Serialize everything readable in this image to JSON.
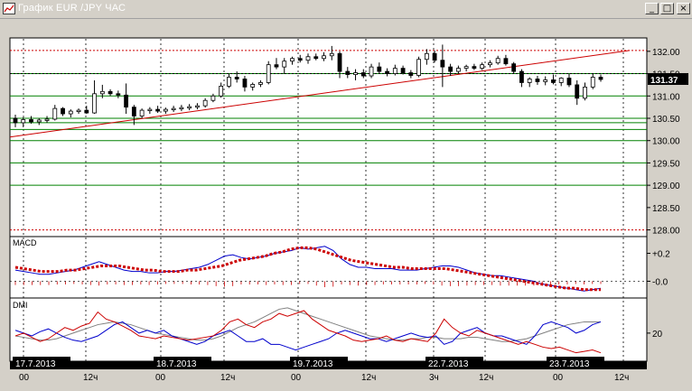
{
  "window": {
    "title": "График EUR /JPY ЧАС",
    "btn_min": "_",
    "btn_max": "□",
    "btn_close": "×"
  },
  "chart_data": {
    "type": "candlestick",
    "price": {
      "yaxis_ticks": [
        "132.00",
        "131.50",
        "131.00",
        "130.50",
        "130.00",
        "129.50",
        "129.00",
        "128.50",
        "128.00"
      ],
      "ylim": [
        127.85,
        132.3
      ],
      "current_price": "131.37",
      "bars": [
        [
          130.5,
          130.58,
          130.3,
          130.4
        ],
        [
          130.4,
          130.52,
          130.3,
          130.47
        ],
        [
          130.47,
          130.55,
          130.38,
          130.42
        ],
        [
          130.42,
          130.5,
          130.35,
          130.46
        ],
        [
          130.46,
          130.55,
          130.4,
          130.48
        ],
        [
          130.48,
          130.8,
          130.45,
          130.72
        ],
        [
          130.72,
          130.75,
          130.55,
          130.6
        ],
        [
          130.6,
          130.7,
          130.52,
          130.66
        ],
        [
          130.66,
          130.72,
          130.6,
          130.68
        ],
        [
          130.68,
          130.78,
          130.6,
          130.62
        ],
        [
          130.62,
          131.35,
          130.6,
          131.05
        ],
        [
          131.05,
          131.25,
          130.95,
          131.1
        ],
        [
          131.1,
          131.15,
          131.0,
          131.05
        ],
        [
          131.05,
          131.12,
          130.95,
          131.02
        ],
        [
          131.02,
          131.28,
          130.6,
          130.75
        ],
        [
          130.75,
          130.8,
          130.35,
          130.55
        ],
        [
          130.55,
          130.72,
          130.5,
          130.68
        ],
        [
          130.68,
          130.75,
          130.6,
          130.7
        ],
        [
          130.7,
          130.78,
          130.62,
          130.66
        ],
        [
          130.66,
          130.74,
          130.6,
          130.7
        ],
        [
          130.7,
          130.78,
          130.64,
          130.72
        ],
        [
          130.72,
          130.8,
          130.66,
          130.74
        ],
        [
          130.74,
          130.82,
          130.68,
          130.76
        ],
        [
          130.76,
          130.84,
          130.7,
          130.78
        ],
        [
          130.78,
          130.95,
          130.74,
          130.9
        ],
        [
          130.9,
          131.05,
          130.86,
          131.0
        ],
        [
          131.0,
          131.3,
          130.96,
          131.22
        ],
        [
          131.22,
          131.5,
          131.18,
          131.42
        ],
        [
          131.42,
          131.55,
          131.3,
          131.38
        ],
        [
          131.38,
          131.45,
          131.1,
          131.2
        ],
        [
          131.2,
          131.3,
          131.12,
          131.26
        ],
        [
          131.26,
          131.35,
          131.2,
          131.3
        ],
        [
          131.3,
          131.78,
          131.26,
          131.7
        ],
        [
          131.7,
          131.85,
          131.6,
          131.65
        ],
        [
          131.65,
          131.85,
          131.5,
          131.78
        ],
        [
          131.78,
          131.88,
          131.7,
          131.84
        ],
        [
          131.84,
          131.92,
          131.75,
          131.8
        ],
        [
          131.8,
          131.95,
          131.72,
          131.88
        ],
        [
          131.88,
          131.95,
          131.8,
          131.84
        ],
        [
          131.84,
          131.98,
          131.78,
          131.9
        ],
        [
          131.9,
          132.12,
          131.8,
          131.95
        ],
        [
          131.95,
          132.0,
          131.4,
          131.55
        ],
        [
          131.55,
          131.65,
          131.4,
          131.48
        ],
        [
          131.48,
          131.6,
          131.35,
          131.52
        ],
        [
          131.52,
          131.6,
          131.4,
          131.45
        ],
        [
          131.45,
          131.72,
          131.4,
          131.65
        ],
        [
          131.65,
          131.75,
          131.5,
          131.55
        ],
        [
          131.55,
          131.62,
          131.44,
          131.5
        ],
        [
          131.5,
          131.7,
          131.46,
          131.62
        ],
        [
          131.62,
          131.68,
          131.48,
          131.52
        ],
        [
          131.52,
          131.58,
          131.4,
          131.46
        ],
        [
          131.46,
          131.88,
          131.42,
          131.82
        ],
        [
          131.82,
          132.05,
          131.7,
          131.95
        ],
        [
          131.95,
          132.02,
          131.75,
          131.8
        ],
        [
          131.8,
          132.15,
          131.2,
          131.65
        ],
        [
          131.65,
          131.72,
          131.45,
          131.55
        ],
        [
          131.55,
          131.68,
          131.5,
          131.62
        ],
        [
          131.62,
          131.7,
          131.55,
          131.66
        ],
        [
          131.66,
          131.72,
          131.58,
          131.62
        ],
        [
          131.62,
          131.75,
          131.58,
          131.7
        ],
        [
          131.7,
          131.8,
          131.64,
          131.74
        ],
        [
          131.74,
          131.9,
          131.7,
          131.84
        ],
        [
          131.84,
          131.92,
          131.68,
          131.72
        ],
        [
          131.72,
          131.76,
          131.5,
          131.55
        ],
        [
          131.55,
          131.6,
          131.2,
          131.3
        ],
        [
          131.3,
          131.42,
          131.2,
          131.38
        ],
        [
          131.38,
          131.45,
          131.25,
          131.32
        ],
        [
          131.32,
          131.44,
          131.24,
          131.36
        ],
        [
          131.36,
          131.48,
          131.26,
          131.3
        ],
        [
          131.3,
          131.42,
          131.22,
          131.4
        ],
        [
          131.4,
          131.5,
          131.2,
          131.25
        ],
        [
          131.25,
          131.35,
          130.8,
          130.95
        ],
        [
          130.95,
          131.3,
          130.9,
          131.2
        ],
        [
          131.2,
          131.5,
          131.15,
          131.42
        ],
        [
          131.42,
          131.48,
          131.32,
          131.37
        ]
      ],
      "trendline": {
        "from": 130.08,
        "to": 132.02
      },
      "hlines_red": [
        132.02,
        128.0
      ],
      "hlines_green": [
        131.5,
        131.0,
        130.5,
        130.4,
        130.25,
        130.0,
        129.5,
        129.0
      ],
      "hlines_black_dotted": [
        131.5
      ]
    },
    "macd": {
      "label": "MACD",
      "yaxis_ticks": [
        "+0.2",
        "-0.0"
      ],
      "ylim": [
        -0.12,
        0.32
      ],
      "main": [
        0.08,
        0.07,
        0.06,
        0.05,
        0.05,
        0.06,
        0.07,
        0.08,
        0.1,
        0.12,
        0.14,
        0.12,
        0.1,
        0.08,
        0.07,
        0.07,
        0.06,
        0.06,
        0.07,
        0.07,
        0.08,
        0.09,
        0.1,
        0.12,
        0.15,
        0.18,
        0.19,
        0.17,
        0.16,
        0.17,
        0.18,
        0.2,
        0.21,
        0.22,
        0.24,
        0.23,
        0.24,
        0.25,
        0.22,
        0.16,
        0.12,
        0.1,
        0.1,
        0.09,
        0.09,
        0.09,
        0.08,
        0.08,
        0.08,
        0.09,
        0.1,
        0.11,
        0.11,
        0.1,
        0.08,
        0.06,
        0.05,
        0.04,
        0.04,
        0.03,
        0.02,
        0.01,
        0.0,
        -0.02,
        -0.03,
        -0.04,
        -0.05,
        -0.06,
        -0.07,
        -0.06,
        -0.05
      ],
      "signal": [
        0.1,
        0.09,
        0.08,
        0.07,
        0.07,
        0.07,
        0.08,
        0.08,
        0.09,
        0.1,
        0.11,
        0.11,
        0.11,
        0.1,
        0.09,
        0.08,
        0.08,
        0.07,
        0.07,
        0.07,
        0.08,
        0.08,
        0.09,
        0.1,
        0.11,
        0.13,
        0.15,
        0.16,
        0.17,
        0.18,
        0.2,
        0.21,
        0.23,
        0.24,
        0.24,
        0.23,
        0.21,
        0.19,
        0.17,
        0.15,
        0.14,
        0.13,
        0.12,
        0.11,
        0.1,
        0.1,
        0.09,
        0.09,
        0.09,
        0.09,
        0.09,
        0.08,
        0.07,
        0.06,
        0.05,
        0.04,
        0.03,
        0.02,
        0.01,
        0.0,
        -0.01,
        -0.02,
        -0.03,
        -0.04,
        -0.05,
        -0.05,
        -0.06,
        -0.06,
        -0.06
      ]
    },
    "dmi": {
      "label": "DMI",
      "yaxis_ticks": [
        "20"
      ],
      "ylim": [
        0,
        45
      ],
      "plus_di": [
        18,
        20,
        17,
        14,
        16,
        20,
        24,
        22,
        25,
        27,
        35,
        30,
        28,
        25,
        22,
        18,
        17,
        16,
        18,
        17,
        16,
        15,
        16,
        17,
        18,
        22,
        28,
        30,
        26,
        24,
        28,
        30,
        34,
        32,
        34,
        36,
        30,
        26,
        22,
        20,
        18,
        15,
        14,
        15,
        16,
        18,
        15,
        14,
        16,
        15,
        14,
        20,
        30,
        24,
        20,
        18,
        22,
        20,
        18,
        16,
        14,
        12,
        14,
        12,
        10,
        9,
        10,
        8,
        6,
        7,
        8,
        6
      ],
      "minus_di": [
        22,
        20,
        18,
        21,
        23,
        20,
        17,
        15,
        14,
        16,
        18,
        22,
        26,
        28,
        24,
        20,
        22,
        20,
        22,
        18,
        16,
        14,
        12,
        14,
        18,
        20,
        22,
        18,
        14,
        14,
        16,
        12,
        12,
        10,
        8,
        10,
        12,
        14,
        16,
        20,
        22,
        20,
        18,
        16,
        16,
        14,
        16,
        18,
        20,
        18,
        17,
        18,
        12,
        14,
        20,
        22,
        24,
        20,
        18,
        18,
        16,
        14,
        12,
        18,
        26,
        28,
        26,
        24,
        20,
        22,
        26,
        28
      ],
      "adx": [
        18,
        17,
        16,
        15,
        15,
        16,
        18,
        20,
        22,
        24,
        26,
        27,
        28,
        27,
        26,
        24,
        22,
        20,
        19,
        18,
        17,
        16,
        15,
        15,
        16,
        18,
        21,
        24,
        26,
        28,
        31,
        34,
        37,
        38,
        36,
        34,
        32,
        30,
        28,
        26,
        24,
        22,
        20,
        18,
        17,
        16,
        15,
        15,
        16,
        16,
        17,
        17,
        16,
        16,
        16,
        17,
        17,
        16,
        15,
        14,
        14,
        15,
        16,
        18,
        20,
        22,
        24,
        26,
        27,
        28,
        28,
        28
      ]
    },
    "x_dates": [
      "17.7.2013",
      "18.7.2013",
      "19.7.2013",
      "22.7.2013",
      "23.7.2013"
    ],
    "x_time_labels": [
      "00",
      "12ч",
      "00",
      "12ч",
      "00",
      "12ч",
      "3ч",
      "12ч",
      "00",
      "12ч"
    ]
  },
  "colors": {
    "bg": "#ffffff",
    "grid": "#000000",
    "red": "#cc0000",
    "green": "#008000",
    "blue": "#0000cc",
    "grey": "#808080"
  }
}
